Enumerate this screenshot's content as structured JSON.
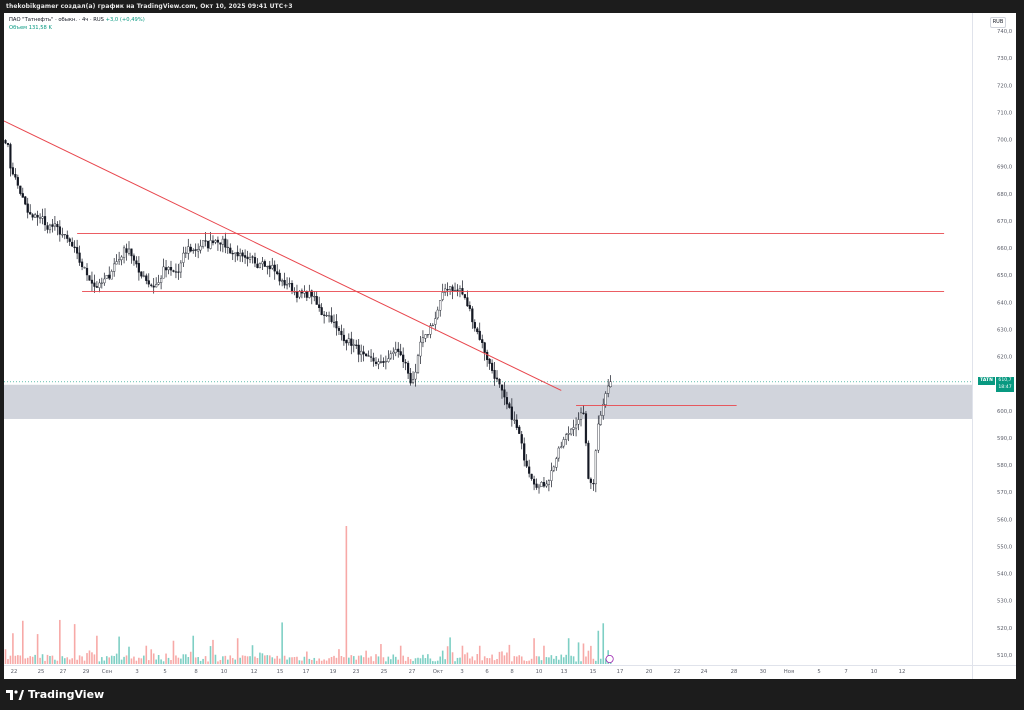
{
  "header": {
    "caption": "thekobikgamer создал(а) график на TradingView.com, Окт 10, 2025 09:41 UTC+3"
  },
  "legend": {
    "title": "ПАО \"Татнефть\" · обыкн. · 4ч · RUS",
    "change": "+3,0 (+0,49%)",
    "volume": "Объем  131,58 K"
  },
  "currency_label": "RUB",
  "price_tag": {
    "symbol": "TATN",
    "price": "610,7",
    "countdown": "18:47"
  },
  "brand": "TradingView",
  "colors": {
    "up": "#089981",
    "down": "#f23645",
    "vol_up": "#7ecfc4",
    "vol_down": "#f7a9a7",
    "trend": "#e8464d",
    "zone": "#d1d4dc"
  },
  "chart_data": {
    "type": "candlestick",
    "y_ticks": [
      "740,0",
      "730,0",
      "720,0",
      "710,0",
      "700,0",
      "690,0",
      "680,0",
      "670,0",
      "660,0",
      "650,0",
      "640,0",
      "630,0",
      "620,0",
      "610,0",
      "600,0",
      "590,0",
      "580,0",
      "570,0",
      "560,0",
      "550,0",
      "540,0",
      "530,0",
      "520,0",
      "510,0"
    ],
    "x_ticks": [
      "22",
      "25",
      "27",
      "29",
      "Сен",
      "3",
      "5",
      "8",
      "10",
      "12",
      "15",
      "17",
      "19",
      "23",
      "25",
      "27",
      "Окт",
      "3",
      "6",
      "8",
      "10",
      "13",
      "15",
      "17",
      "20",
      "22",
      "24",
      "28",
      "30",
      "Ноя",
      "5",
      "7",
      "10",
      "12"
    ],
    "ylim": [
      504,
      746
    ],
    "path_anchors": [
      [
        0,
        700
      ],
      [
        1,
        697
      ],
      [
        2,
        690
      ],
      [
        3,
        688
      ],
      [
        5,
        683
      ],
      [
        7,
        678
      ],
      [
        9,
        673
      ],
      [
        11,
        671
      ],
      [
        13,
        672
      ],
      [
        15,
        671
      ],
      [
        16,
        668
      ],
      [
        18,
        668
      ],
      [
        20,
        668
      ],
      [
        22,
        666
      ],
      [
        24,
        664
      ],
      [
        26,
        662
      ],
      [
        28,
        659
      ],
      [
        30,
        655
      ],
      [
        32,
        652
      ],
      [
        34,
        649
      ],
      [
        36,
        646
      ],
      [
        38,
        646
      ],
      [
        40,
        648
      ],
      [
        42,
        650
      ],
      [
        44,
        654
      ],
      [
        46,
        656
      ],
      [
        48,
        659
      ],
      [
        50,
        660
      ],
      [
        52,
        655
      ],
      [
        54,
        651
      ],
      [
        56,
        650
      ],
      [
        58,
        647
      ],
      [
        60,
        646
      ],
      [
        62,
        647
      ],
      [
        64,
        652
      ],
      [
        66,
        652
      ],
      [
        68,
        651
      ],
      [
        70,
        651
      ],
      [
        72,
        657
      ],
      [
        74,
        660
      ],
      [
        76,
        659
      ],
      [
        78,
        660
      ],
      [
        80,
        662
      ],
      [
        82,
        661
      ],
      [
        84,
        663
      ],
      [
        86,
        663
      ],
      [
        88,
        662
      ],
      [
        90,
        660
      ],
      [
        92,
        658
      ],
      [
        94,
        658
      ],
      [
        96,
        656
      ],
      [
        98,
        655
      ],
      [
        100,
        656
      ],
      [
        102,
        654
      ],
      [
        104,
        656
      ],
      [
        106,
        653
      ],
      [
        108,
        653
      ],
      [
        110,
        650
      ],
      [
        112,
        647
      ],
      [
        114,
        647
      ],
      [
        116,
        645
      ],
      [
        118,
        643
      ],
      [
        120,
        643
      ],
      [
        122,
        643
      ],
      [
        124,
        643
      ],
      [
        126,
        639
      ],
      [
        128,
        636
      ],
      [
        130,
        636
      ],
      [
        132,
        634
      ],
      [
        134,
        630
      ],
      [
        136,
        628
      ],
      [
        138,
        626
      ],
      [
        140,
        625
      ],
      [
        142,
        623
      ],
      [
        144,
        621
      ],
      [
        146,
        619
      ],
      [
        148,
        619
      ],
      [
        150,
        618
      ],
      [
        152,
        617
      ],
      [
        154,
        619
      ],
      [
        156,
        620
      ],
      [
        158,
        623
      ],
      [
        160,
        620
      ],
      [
        162,
        617
      ],
      [
        164,
        611
      ],
      [
        166,
        613
      ],
      [
        168,
        625
      ],
      [
        170,
        627
      ],
      [
        172,
        631
      ],
      [
        174,
        634
      ],
      [
        176,
        640
      ],
      [
        178,
        645
      ],
      [
        180,
        646
      ],
      [
        182,
        644
      ],
      [
        184,
        645
      ],
      [
        186,
        641
      ],
      [
        188,
        637
      ],
      [
        190,
        631
      ],
      [
        192,
        627
      ],
      [
        194,
        622
      ],
      [
        196,
        617
      ],
      [
        198,
        613
      ],
      [
        200,
        609
      ],
      [
        202,
        604
      ],
      [
        204,
        600
      ],
      [
        206,
        596
      ],
      [
        208,
        591
      ],
      [
        210,
        583
      ],
      [
        212,
        578
      ],
      [
        214,
        574
      ],
      [
        216,
        572
      ],
      [
        218,
        573
      ],
      [
        220,
        575
      ],
      [
        222,
        580
      ],
      [
        224,
        585
      ],
      [
        226,
        589
      ],
      [
        228,
        592
      ],
      [
        230,
        595
      ],
      [
        232,
        596
      ],
      [
        234,
        600
      ],
      [
        235,
        587
      ],
      [
        236,
        575
      ],
      [
        238,
        574
      ],
      [
        240,
        596
      ],
      [
        242,
        603
      ],
      [
        244,
        609
      ],
      [
        245,
        611
      ]
    ],
    "volume_scale_max": 166,
    "volume_highlights": [
      [
        3,
        37
      ],
      [
        7,
        52
      ],
      [
        13,
        36
      ],
      [
        22,
        53
      ],
      [
        28,
        48
      ],
      [
        37,
        34
      ],
      [
        46,
        33
      ],
      [
        57,
        22
      ],
      [
        68,
        28
      ],
      [
        76,
        34
      ],
      [
        84,
        29
      ],
      [
        94,
        31
      ],
      [
        112,
        50
      ],
      [
        122,
        15
      ],
      [
        138,
        166
      ],
      [
        152,
        24
      ],
      [
        160,
        22
      ],
      [
        180,
        32
      ],
      [
        185,
        22
      ],
      [
        204,
        23
      ],
      [
        214,
        31
      ],
      [
        218,
        22
      ],
      [
        228,
        31
      ],
      [
        232,
        26
      ],
      [
        236,
        16
      ],
      [
        240,
        40
      ],
      [
        242,
        49
      ]
    ],
    "horizontal_levels": [
      {
        "price": 665.4,
        "from_bar": 29,
        "to_bar": 380
      },
      {
        "price": 644.0,
        "from_bar": 31,
        "to_bar": 380
      },
      {
        "price": 602.0,
        "from_bar": 231,
        "to_bar": 296
      }
    ],
    "trendline": {
      "start": [
        -1,
        707
      ],
      "end": [
        225,
        607.5
      ]
    },
    "zone": {
      "low": 597,
      "high": 609.6
    },
    "current_price": 610.7,
    "last_bar_index": 245
  }
}
